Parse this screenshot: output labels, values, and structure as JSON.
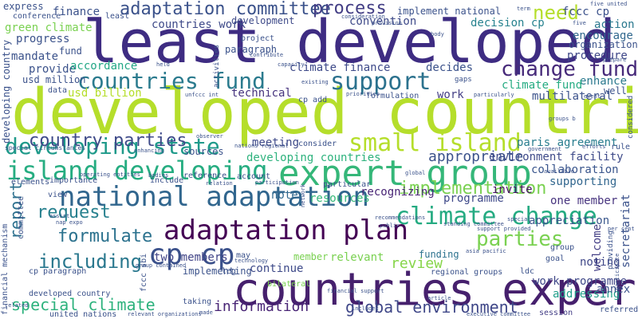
{
  "words": [
    {
      "text": "least developed",
      "color": "#3e2c82"
    },
    {
      "text": "developed countrie",
      "color": "#b5de2b"
    },
    {
      "text": "countries expert",
      "color": "#46206d"
    },
    {
      "text": "expert group",
      "color": "#35b779"
    },
    {
      "text": "national adaptation",
      "color": "#31668e"
    },
    {
      "text": "adaptation plan",
      "color": "#440154"
    },
    {
      "text": "island developing",
      "color": "#26ad81"
    },
    {
      "text": "developing state",
      "color": "#1f9a8a"
    },
    {
      "text": "climate change",
      "color": "#25ab82"
    },
    {
      "text": "countries fund",
      "color": "#2b7b8e"
    },
    {
      "text": "cp cp",
      "color": "#3b518b"
    },
    {
      "text": "small island",
      "color": "#b5de2b"
    },
    {
      "text": "country parties",
      "color": "#3e4a89"
    },
    {
      "text": "adaptation committee",
      "color": "#3b528b"
    },
    {
      "text": "change fund",
      "color": "#472a7a"
    },
    {
      "text": "support",
      "color": "#2c728e"
    },
    {
      "text": "process",
      "color": "#433e85"
    },
    {
      "text": "need",
      "color": "#b5de2b"
    },
    {
      "text": "implementation",
      "color": "#7ad151"
    },
    {
      "text": "parties",
      "color": "#7ad151"
    },
    {
      "text": "request",
      "color": "#27808e"
    },
    {
      "text": "including",
      "color": "#2a788e"
    },
    {
      "text": "formulate",
      "color": "#2c728e"
    },
    {
      "text": "information",
      "color": "#482475"
    },
    {
      "text": "global environment",
      "color": "#3f4788"
    },
    {
      "text": "special climate",
      "color": "#2db27d"
    },
    {
      "text": "report",
      "color": "#2d708e"
    },
    {
      "text": "review",
      "color": "#86d549"
    },
    {
      "text": "appropriate",
      "color": "#3b528b"
    },
    {
      "text": "environment facility",
      "color": "#3e4a89"
    },
    {
      "text": "paris agreement",
      "color": "#287d8e"
    },
    {
      "text": "collaboration",
      "color": "#39558c"
    },
    {
      "text": "supporting",
      "color": "#31668e"
    },
    {
      "text": "appreciation",
      "color": "#39568c"
    },
    {
      "text": "programme",
      "color": "#3e4989"
    },
    {
      "text": "recognizing",
      "color": "#482475"
    },
    {
      "text": "resources",
      "color": "#35b779"
    },
    {
      "text": "invite",
      "color": "#471164"
    },
    {
      "text": "climate finance",
      "color": "#3e4a89"
    },
    {
      "text": "decides",
      "color": "#3b528b"
    },
    {
      "text": "convention",
      "color": "#3e4a89"
    },
    {
      "text": "decision cp",
      "color": "#26828e"
    },
    {
      "text": "action",
      "color": "#2a788e"
    },
    {
      "text": "fccc cp",
      "color": "#3b518b"
    },
    {
      "text": "encourage",
      "color": "#31688e"
    },
    {
      "text": "procedure",
      "color": "#3f4788"
    },
    {
      "text": "enhance",
      "color": "#2a788e"
    },
    {
      "text": "climate fund",
      "color": "#25ab82"
    },
    {
      "text": "multilateral",
      "color": "#3b528b"
    },
    {
      "text": "developing countries",
      "color": "#2db27d"
    },
    {
      "text": "meeting",
      "color": "#3e4a89"
    },
    {
      "text": "two members",
      "color": "#414487"
    },
    {
      "text": "work programme",
      "color": "#3f4788"
    },
    {
      "text": "secretariat",
      "color": "#3b528b"
    },
    {
      "text": "one member",
      "color": "#46337e"
    },
    {
      "text": "welcome",
      "color": "#433e85"
    },
    {
      "text": "noting",
      "color": "#3f4788"
    },
    {
      "text": "addressing",
      "color": "#1f9e89"
    },
    {
      "text": "annex",
      "color": "#3b528b"
    },
    {
      "text": "session",
      "color": "#433e85"
    },
    {
      "text": "continue",
      "color": "#3e4a89"
    },
    {
      "text": "implementing",
      "color": "#3b528b"
    },
    {
      "text": "funding",
      "color": "#2c728e"
    },
    {
      "text": "relevant",
      "color": "#7ad151"
    },
    {
      "text": "member",
      "color": "#7ad151"
    },
    {
      "text": "note",
      "color": "#31688e"
    },
    {
      "text": "technical",
      "color": "#46337e"
    },
    {
      "text": "mandate",
      "color": "#3b528b"
    },
    {
      "text": "provide",
      "color": "#3b528b"
    },
    {
      "text": "accordance",
      "color": "#22a785"
    },
    {
      "text": "usd billion",
      "color": "#b5de2b"
    },
    {
      "text": "usd million",
      "color": "#3b528b"
    },
    {
      "text": "finance",
      "color": "#3b528b"
    },
    {
      "text": "implement national",
      "color": "#3b528b"
    },
    {
      "text": "countries work",
      "color": "#3e4a89"
    },
    {
      "text": "development",
      "color": "#3e4a89"
    },
    {
      "text": "green climate",
      "color": "#7ad151"
    },
    {
      "text": "progress",
      "color": "#3b528b"
    },
    {
      "text": "express",
      "color": "#3b528b"
    },
    {
      "text": "conference",
      "color": "#3b528b"
    },
    {
      "text": "least",
      "color": "#3b528b"
    },
    {
      "text": "fund",
      "color": "#3b528b"
    },
    {
      "text": "project",
      "color": "#3b528b"
    },
    {
      "text": "paragraph",
      "color": "#3b528b"
    },
    {
      "text": "organizations",
      "color": "#3b528b"
    },
    {
      "text": "well",
      "color": "#3b528b"
    },
    {
      "text": "work",
      "color": "#433e85"
    },
    {
      "text": "formulation",
      "color": "#3b528b"
    },
    {
      "text": "cp add",
      "color": "#3b528b"
    },
    {
      "text": "data",
      "color": "#3b528b"
    },
    {
      "text": "sources",
      "color": "#3b528b"
    },
    {
      "text": "developing country",
      "color": "#3b528b"
    },
    {
      "text": "elements",
      "color": "#3b528b"
    },
    {
      "text": "importance",
      "color": "#3b528b"
    },
    {
      "text": "view",
      "color": "#3b528b"
    },
    {
      "text": "include",
      "color": "#3b528b"
    },
    {
      "text": "reference",
      "color": "#3b528b"
    },
    {
      "text": "account",
      "color": "#3b528b"
    },
    {
      "text": "particular",
      "color": "#3b528b"
    },
    {
      "text": "consider",
      "color": "#3b528b"
    },
    {
      "text": "bilateral",
      "color": "#7ad151"
    },
    {
      "text": "regional groups",
      "color": "#3b528b"
    },
    {
      "text": "financial mechanism",
      "color": "#3b528b"
    },
    {
      "text": "committee",
      "color": "#3b528b"
    },
    {
      "text": "cp paragraph",
      "color": "#3b528b"
    },
    {
      "text": "developed country",
      "color": "#3b528b"
    },
    {
      "text": "united nations",
      "color": "#3b528b"
    },
    {
      "text": "fccc sbi",
      "color": "#3b528b"
    },
    {
      "text": "referred",
      "color": "#3b528b"
    },
    {
      "text": "taking",
      "color": "#3b528b"
    },
    {
      "text": "special circumstances",
      "color": "#3b528b"
    },
    {
      "text": "considered",
      "color": "#3b528b"
    },
    {
      "text": "providing",
      "color": "#3b528b"
    },
    {
      "text": "rule",
      "color": "#3b528b"
    },
    {
      "text": "ldc",
      "color": "#3b528b"
    },
    {
      "text": "goal",
      "color": "#3b528b"
    },
    {
      "text": "group",
      "color": "#3b528b"
    },
    {
      "text": "nations regional",
      "color": "#3b528b"
    },
    {
      "text": "leg",
      "color": "#3b528b"
    },
    {
      "text": "may",
      "color": "#3b528b"
    },
    {
      "text": "gaps",
      "color": "#3b528b"
    },
    {
      "text": "activities",
      "color": "#3b528b"
    },
    {
      "text": "existing",
      "color": "#3b528b"
    },
    {
      "text": "unfccc int",
      "color": "#3b528b"
    },
    {
      "text": "capacity",
      "color": "#3b528b"
    },
    {
      "text": "priorities",
      "color": "#3b528b"
    },
    {
      "text": "asia pacific",
      "color": "#3b528b"
    },
    {
      "text": "five united",
      "color": "#3b528b"
    },
    {
      "text": "term",
      "color": "#3b528b"
    },
    {
      "text": "body",
      "color": "#3b528b"
    },
    {
      "text": "prepare",
      "color": "#3b528b"
    },
    {
      "text": "event",
      "color": "#3b528b"
    },
    {
      "text": "groups b",
      "color": "#3b528b"
    },
    {
      "text": "government",
      "color": "#3b528b"
    },
    {
      "text": "efforts",
      "color": "#3b528b"
    },
    {
      "text": "available",
      "color": "#3b528b"
    },
    {
      "text": "per cent",
      "color": "#3b528b"
    },
    {
      "text": "participate",
      "color": "#3b528b"
    },
    {
      "text": "standing committee",
      "color": "#3b528b"
    },
    {
      "text": "support provided",
      "color": "#3b528b"
    },
    {
      "text": "financial support",
      "color": "#3b528b"
    },
    {
      "text": "relevant organizations",
      "color": "#3b528b"
    },
    {
      "text": "executive committee",
      "color": "#3b528b"
    },
    {
      "text": "article",
      "color": "#3b528b"
    },
    {
      "text": "recommendations",
      "color": "#3b528b"
    },
    {
      "text": "public",
      "color": "#3b528b"
    },
    {
      "text": "special",
      "color": "#3b528b"
    },
    {
      "text": "related",
      "color": "#3b528b"
    },
    {
      "text": "assist",
      "color": "#3b528b"
    },
    {
      "text": "operating entities",
      "color": "#3b528b"
    },
    {
      "text": "technology",
      "color": "#3b528b"
    },
    {
      "text": "observer",
      "color": "#3b528b"
    },
    {
      "text": "enhancing",
      "color": "#3b528b"
    },
    {
      "text": "network",
      "color": "#3b528b"
    },
    {
      "text": "consideration",
      "color": "#3b528b"
    },
    {
      "text": "provision",
      "color": "#3b528b"
    },
    {
      "text": "contribute",
      "color": "#3b528b"
    },
    {
      "text": "held",
      "color": "#3b528b"
    },
    {
      "text": "nap expo",
      "color": "#3b528b"
    },
    {
      "text": "bodies",
      "color": "#3b528b"
    },
    {
      "text": "relation",
      "color": "#3b528b"
    },
    {
      "text": "participation",
      "color": "#3b528b"
    },
    {
      "text": "included",
      "color": "#3b528b"
    },
    {
      "text": "made",
      "color": "#3b528b"
    },
    {
      "text": "global",
      "color": "#3b528b"
    },
    {
      "text": "particularly",
      "color": "#3b528b"
    },
    {
      "text": "five",
      "color": "#3b528b"
    },
    {
      "text": "group contained",
      "color": "#3b528b"
    }
  ]
}
